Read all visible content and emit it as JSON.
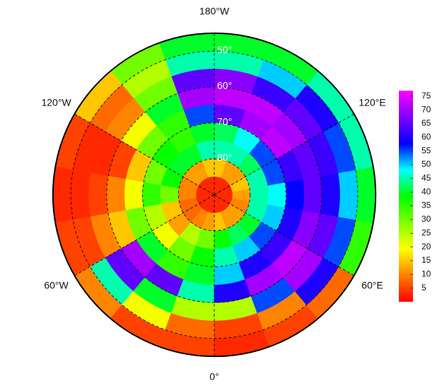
{
  "chart_data": {
    "type": "polar_heatmap",
    "lat_edges": [
      45,
      50,
      55,
      60,
      65,
      70,
      75,
      80,
      85,
      90
    ],
    "lon_edges": [
      -180,
      -160,
      -140,
      -120,
      -100,
      -80,
      -60,
      -40,
      -20,
      0,
      20,
      40,
      60,
      80,
      100,
      120,
      140,
      160,
      180
    ],
    "values": [
      [
        40,
        30,
        15,
        5,
        3,
        5,
        10,
        5,
        5,
        3,
        5,
        8,
        35,
        40,
        45,
        45,
        40,
        40
      ],
      [
        45,
        25,
        8,
        3,
        3,
        5,
        45,
        20,
        8,
        5,
        10,
        60,
        55,
        50,
        55,
        60,
        50,
        45
      ],
      [
        65,
        30,
        10,
        3,
        5,
        10,
        65,
        40,
        25,
        25,
        55,
        70,
        65,
        60,
        62,
        65,
        62,
        68
      ],
      [
        70,
        40,
        20,
        5,
        10,
        15,
        70,
        65,
        45,
        60,
        70,
        72,
        68,
        65,
        65,
        70,
        72,
        72
      ],
      [
        55,
        35,
        30,
        15,
        20,
        30,
        40,
        35,
        40,
        50,
        60,
        62,
        60,
        58,
        62,
        72,
        70,
        65
      ],
      [
        40,
        35,
        38,
        30,
        35,
        25,
        20,
        30,
        38,
        45,
        50,
        55,
        50,
        48,
        55,
        55,
        48,
        42
      ],
      [
        45,
        40,
        40,
        38,
        30,
        15,
        12,
        25,
        30,
        38,
        42,
        40,
        45,
        45,
        45,
        42,
        45,
        45
      ],
      [
        15,
        12,
        12,
        10,
        10,
        8,
        8,
        10,
        12,
        15,
        12,
        12,
        10,
        12,
        15,
        12,
        12,
        15
      ],
      [
        3,
        3,
        3,
        3,
        3,
        3,
        3,
        3,
        3,
        3,
        3,
        3,
        3,
        3,
        3,
        3,
        3,
        3
      ]
    ],
    "colormap": [
      "#ff0000",
      "#ff8000",
      "#ffff00",
      "#80ff00",
      "#00ff00",
      "#00ffff",
      "#0000ff",
      "#8000ff",
      "#ff00ff"
    ],
    "clim": [
      0,
      77
    ],
    "cticks": [
      5,
      10,
      15,
      20,
      25,
      30,
      35,
      40,
      45,
      50,
      55,
      60,
      65,
      70,
      75
    ],
    "lat_ticks": [
      {
        "value": 50,
        "label": "50°"
      },
      {
        "value": 60,
        "label": "60°"
      },
      {
        "value": 70,
        "label": "70°"
      },
      {
        "value": 80,
        "label": "80°"
      }
    ],
    "lon_ticks": [
      {
        "value": -180,
        "label": "180°W"
      },
      {
        "value": -120,
        "label": "120°W"
      },
      {
        "value": -60,
        "label": "60°W"
      },
      {
        "value": 0,
        "label": "0°"
      },
      {
        "value": 60,
        "label": "60°E"
      },
      {
        "value": 120,
        "label": "120°E"
      }
    ],
    "grid": true
  }
}
